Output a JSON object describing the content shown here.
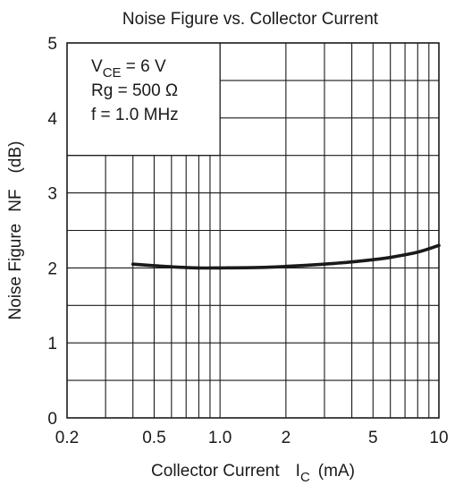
{
  "chart_data": {
    "type": "line",
    "title": "Noise Figure vs. Collector Current",
    "xlabel": "Collector Current",
    "xlabel_symbol": "I",
    "xlabel_subscript": "C",
    "xlabel_unit": "(mA)",
    "ylabel": "Noise Figure",
    "ylabel_symbol": "NF",
    "ylabel_unit": "(dB)",
    "xscale": "log",
    "xlim": [
      0.2,
      10
    ],
    "ylim": [
      0,
      5
    ],
    "x_ticks": [
      0.2,
      0.5,
      1.0,
      2,
      5,
      10
    ],
    "x_tick_labels": [
      "0.2",
      "0.5",
      "1.0",
      "2",
      "5",
      "10"
    ],
    "y_ticks": [
      0,
      1,
      2,
      3,
      4,
      5
    ],
    "y_tick_labels": [
      "0",
      "1",
      "2",
      "3",
      "4",
      "5"
    ],
    "x_grid": [
      0.3,
      0.4,
      0.5,
      0.6,
      0.7,
      0.8,
      0.9,
      1,
      2,
      3,
      4,
      5,
      6,
      7,
      8,
      9
    ],
    "y_grid": [
      0.5,
      1,
      1.5,
      2,
      2.5,
      3,
      3.5,
      4,
      4.5
    ],
    "grid": true,
    "legend_box_extent": {
      "x_max": 1.0,
      "y_min": 3.5
    },
    "annotations": [
      {
        "main": "V",
        "sub": "CE",
        "rest": " = 6 V"
      },
      {
        "main": "Rg = 500 Ω",
        "sub": "",
        "rest": ""
      },
      {
        "main": "f = 1.0 MHz",
        "sub": "",
        "rest": ""
      }
    ],
    "series": [
      {
        "x": [
          0.4,
          0.5,
          0.6,
          0.8,
          1.0,
          1.5,
          2.0,
          3.0,
          4.0,
          5.0,
          6.0,
          8.0,
          10.0
        ],
        "y": [
          2.05,
          2.03,
          2.015,
          2.0,
          2.0,
          2.005,
          2.02,
          2.05,
          2.08,
          2.11,
          2.14,
          2.21,
          2.3
        ]
      }
    ]
  }
}
